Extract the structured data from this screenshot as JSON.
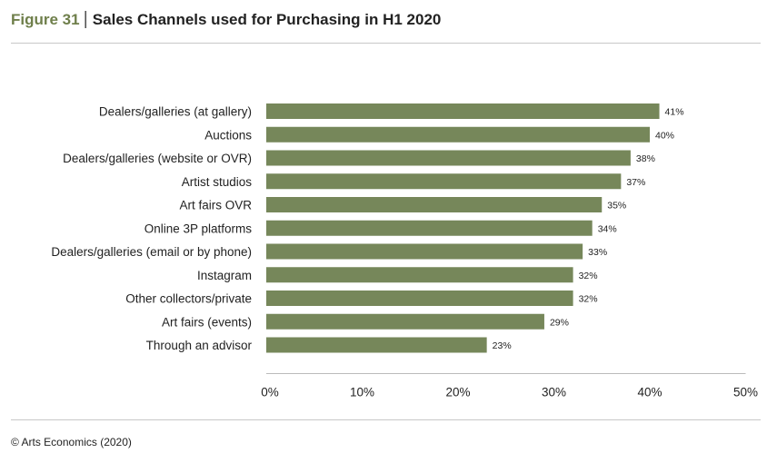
{
  "header": {
    "figure_label": "Figure 31",
    "title": "Sales Channels used for Purchasing in H1 2020"
  },
  "footer": {
    "source": "© Arts Economics (2020)"
  },
  "colors": {
    "bar": "#76875a",
    "accent": "#6f7f4b",
    "axis": "#bbbbbb"
  },
  "chart_data": {
    "type": "bar",
    "orientation": "horizontal",
    "categories": [
      "Dealers/galleries (at gallery)",
      "Auctions",
      "Dealers/galleries (website or OVR)",
      "Artist studios",
      "Art fairs OVR",
      "Online 3P platforms",
      "Dealers/galleries (email or by phone)",
      "Instagram",
      "Other collectors/private",
      "Art fairs (events)",
      "Through an advisor"
    ],
    "values": [
      41,
      40,
      38,
      37,
      35,
      34,
      33,
      32,
      32,
      29,
      23
    ],
    "value_labels": [
      "41%",
      "40%",
      "38%",
      "37%",
      "35%",
      "34%",
      "33%",
      "32%",
      "32%",
      "29%",
      "23%"
    ],
    "x_ticks": [
      "0%",
      "10%",
      "20%",
      "30%",
      "40%",
      "50%"
    ],
    "xlim": [
      0,
      50
    ],
    "title": "",
    "xlabel": "",
    "ylabel": "",
    "grid": false
  }
}
